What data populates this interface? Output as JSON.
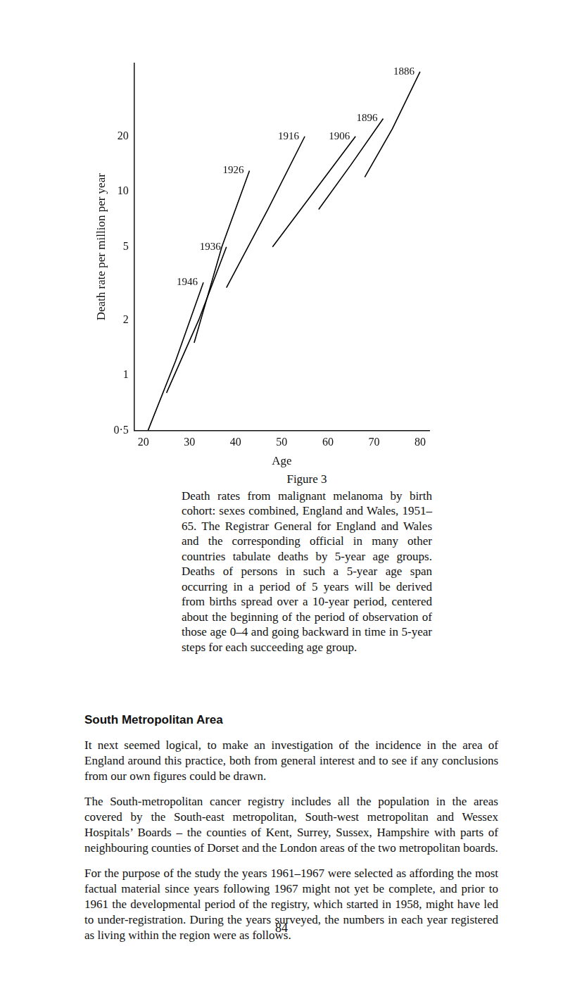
{
  "chart_data": {
    "type": "line",
    "x_label": "Age",
    "y_label": "Death rate per million per year",
    "xlim": [
      18,
      82
    ],
    "xticks": [
      20,
      30,
      40,
      50,
      60,
      70,
      80
    ],
    "ylim": [
      0.5,
      50
    ],
    "yticks": [
      {
        "value": 0.5,
        "label": "0·5"
      },
      1,
      2,
      5,
      10,
      20
    ],
    "log": "y",
    "grid": false,
    "series": [
      {
        "name": "1886",
        "color": "#000000",
        "line_style": "solid",
        "marker": "none",
        "x": [
          68,
          74,
          80
        ],
        "values": [
          12,
          22,
          45
        ]
      },
      {
        "name": "1896",
        "color": "#000000",
        "line_style": "solid",
        "marker": "none",
        "x": [
          58,
          65,
          72
        ],
        "values": [
          8,
          14,
          25
        ]
      },
      {
        "name": "1906",
        "color": "#000000",
        "line_style": "solid",
        "marker": "none",
        "x": [
          48,
          57,
          66
        ],
        "values": [
          5,
          10,
          20
        ]
      },
      {
        "name": "1916",
        "color": "#000000",
        "line_style": "solid",
        "marker": "none",
        "x": [
          38,
          47,
          55
        ],
        "values": [
          3,
          8,
          20
        ]
      },
      {
        "name": "1926",
        "color": "#000000",
        "line_style": "solid",
        "marker": "none",
        "x": [
          31,
          37,
          43
        ],
        "values": [
          1.5,
          5,
          13
        ]
      },
      {
        "name": "1936",
        "color": "#000000",
        "line_style": "solid",
        "marker": "none",
        "x": [
          25,
          32,
          38
        ],
        "values": [
          0.8,
          2,
          5
        ]
      },
      {
        "name": "1946",
        "color": "#000000",
        "line_style": "solid",
        "marker": "none",
        "x": [
          21,
          27,
          33
        ],
        "values": [
          0.5,
          1.2,
          3.2
        ]
      }
    ]
  },
  "caption": {
    "title": "Figure 3",
    "text": "Death rates from malignant melanoma by birth cohort: sexes combined, England and Wales, 1951–65. The Registrar General for England and Wales and the corresponding official in many other countries tabulate deaths by 5-year age groups. Deaths of persons in such a 5-year age span occurring in a period of 5 years will be derived from births spread over a 10-year period, centered about the beginning of the period of observation of those age 0–4 and going backward in time in 5-year steps for each succeeding age group."
  },
  "section": {
    "heading": "South Metropolitan Area",
    "paragraphs": [
      "It next seemed logical, to make an investigation of the incidence in the area of England around this practice, both from general interest and to see if any conclusions from our own figures could be drawn.",
      "The South-metropolitan cancer registry includes all the population in the areas covered by the South-east metropolitan, South-west metropolitan and Wessex Hospitals’ Boards – the counties of Kent, Surrey, Sussex, Hampshire with parts of neighbouring counties of Dorset and the London areas of the two metropolitan boards.",
      "For the purpose of the study the years 1961–1967 were selected as affording the most factual material since years following 1967 might not yet be complete, and prior to 1961 the developmental period of the registry, which started in 1958, might have led to under-registration. During the years surveyed, the numbers in each year registered as living within the region were as follows."
    ]
  },
  "page_number": "84"
}
